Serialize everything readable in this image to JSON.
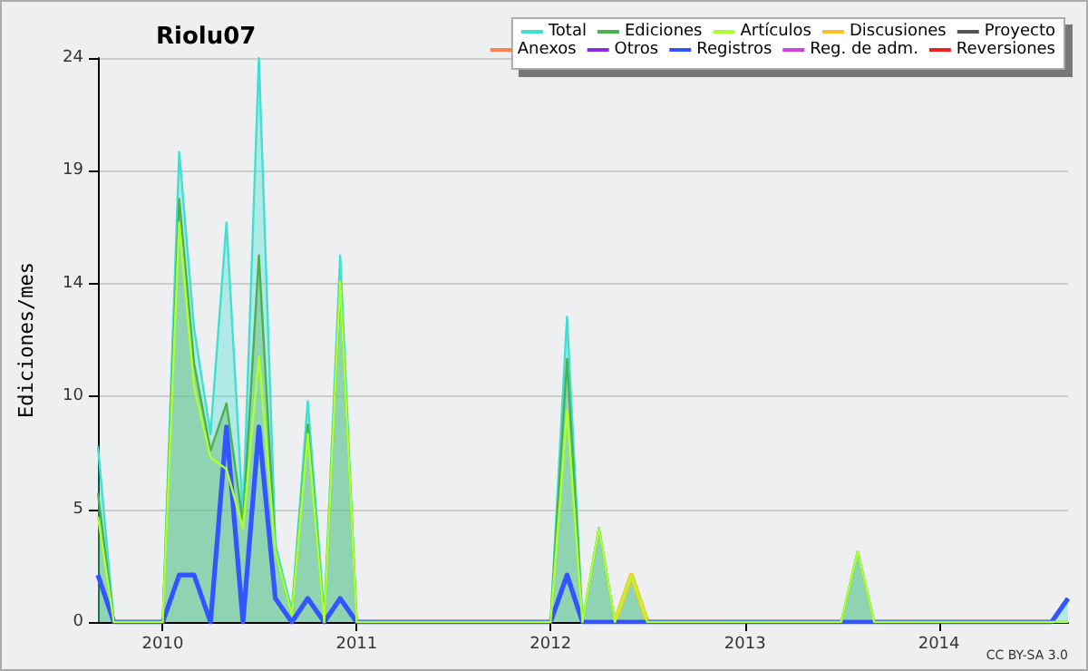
{
  "chart_data": {
    "type": "line",
    "title": "Riolu07",
    "ylabel": "Ediciones/mes",
    "annotations": [
      "CC BY-SA 3.0"
    ],
    "x": [
      "2009-09",
      "2009-10",
      "2009-11",
      "2009-12",
      "2010-01",
      "2010-02",
      "2010-03",
      "2010-04",
      "2010-05",
      "2010-06",
      "2010-07",
      "2010-08",
      "2010-09",
      "2010-10",
      "2010-11",
      "2010-12",
      "2011-01",
      "2011-02",
      "2011-03",
      "2011-04",
      "2011-05",
      "2011-06",
      "2011-07",
      "2011-08",
      "2011-09",
      "2011-10",
      "2011-11",
      "2011-12",
      "2012-01",
      "2012-02",
      "2012-03",
      "2012-04",
      "2012-05",
      "2012-06",
      "2012-07",
      "2012-08",
      "2012-09",
      "2012-10",
      "2012-11",
      "2012-12",
      "2013-01",
      "2013-02",
      "2013-03",
      "2013-04",
      "2013-05",
      "2013-06",
      "2013-07",
      "2013-08",
      "2013-09",
      "2013-10",
      "2013-11",
      "2013-12",
      "2014-01",
      "2014-02",
      "2014-03",
      "2014-04",
      "2014-05",
      "2014-06",
      "2014-07",
      "2014-08",
      "2014-09"
    ],
    "xlim": [
      "2009-09",
      "2014-09"
    ],
    "xticks": [
      {
        "value": "2010-01",
        "label": "2010"
      },
      {
        "value": "2011-01",
        "label": "2011"
      },
      {
        "value": "2012-01",
        "label": "2012"
      },
      {
        "value": "2013-01",
        "label": "2013"
      },
      {
        "value": "2014-01",
        "label": "2014"
      }
    ],
    "ylim": [
      0,
      24
    ],
    "yticks": [
      0,
      {
        "value": 4.8,
        "label": "5"
      },
      {
        "value": 9.6,
        "label": "10"
      },
      {
        "value": 14.4,
        "label": "14"
      },
      {
        "value": 19.2,
        "label": "19"
      },
      24
    ],
    "grid": "y",
    "legend": "top right",
    "marker": "none",
    "line_style": "solid",
    "series": [
      {
        "name": "Total",
        "type": "area",
        "color": "#40e0d0",
        "values": [
          7.5,
          0,
          0,
          0,
          0,
          20,
          12.5,
          8,
          17,
          4.5,
          24,
          3.3,
          0.5,
          9.4,
          0.3,
          15.6,
          0,
          0,
          0,
          0,
          0,
          0,
          0,
          0,
          0,
          0,
          0,
          0,
          0,
          13,
          0,
          4,
          0,
          2,
          0,
          0,
          0,
          0,
          0,
          0,
          0,
          0,
          0,
          0,
          0,
          0,
          0,
          3,
          0,
          0,
          0,
          0,
          0,
          0,
          0,
          0,
          0,
          0,
          0,
          0,
          1
        ]
      },
      {
        "name": "Ediciones",
        "type": "area",
        "color": "#4caf50",
        "values": [
          5.5,
          0,
          0,
          0,
          0,
          18,
          11,
          7.3,
          9.3,
          4.2,
          15.6,
          3,
          0.3,
          8.4,
          0,
          14.5,
          0,
          0,
          0,
          0,
          0,
          0,
          0,
          0,
          0,
          0,
          0,
          0,
          0,
          11.2,
          0,
          4,
          0,
          2,
          0,
          0,
          0,
          0,
          0,
          0,
          0,
          0,
          0,
          0,
          0,
          0,
          0,
          3,
          0,
          0,
          0,
          0,
          0,
          0,
          0,
          0,
          0,
          0,
          0,
          0,
          0
        ]
      },
      {
        "name": "Artículos",
        "color": "#adff2f",
        "values": [
          4.5,
          0,
          0,
          0,
          0,
          17,
          10,
          7,
          6.5,
          4,
          11.3,
          3,
          0.3,
          8,
          0,
          14.5,
          0,
          0,
          0,
          0,
          0,
          0,
          0,
          0,
          0,
          0,
          0,
          0,
          0,
          9,
          0,
          4,
          0,
          2,
          0,
          0,
          0,
          0,
          0,
          0,
          0,
          0,
          0,
          0,
          0,
          0,
          0,
          3,
          0,
          0,
          0,
          0,
          0,
          0,
          0,
          0,
          0,
          0,
          0,
          0,
          0
        ]
      },
      {
        "name": "Discusiones",
        "color": "#ffc125",
        "values": [
          null,
          null,
          null,
          null,
          null,
          null,
          null,
          null,
          null,
          null,
          null,
          null,
          null,
          null,
          null,
          null,
          null,
          null,
          null,
          null,
          null,
          null,
          null,
          null,
          null,
          null,
          null,
          null,
          null,
          null,
          null,
          null,
          0,
          2,
          0,
          null,
          null,
          null,
          null,
          null,
          null,
          null,
          null,
          null,
          null,
          null,
          null,
          null,
          null,
          null,
          null,
          null,
          null,
          null,
          null,
          null,
          null,
          null,
          null,
          null,
          null
        ]
      },
      {
        "name": "Proyecto",
        "color": "#555555",
        "values": [
          null,
          null,
          null,
          null,
          null,
          null,
          null,
          null,
          null,
          null,
          null,
          null,
          null,
          null,
          null,
          null,
          null,
          null,
          null,
          null,
          null,
          null,
          null,
          null,
          null,
          null,
          null,
          null,
          null,
          null,
          null,
          null,
          null,
          null,
          null,
          null,
          null,
          null,
          null,
          null,
          null,
          null,
          null,
          null,
          null,
          null,
          null,
          null,
          null,
          null,
          null,
          null,
          null,
          null,
          null,
          null,
          null,
          null,
          null,
          null,
          null
        ]
      },
      {
        "name": "Anexos",
        "color": "#ff7f50",
        "values": [
          null,
          null,
          null,
          null,
          null,
          null,
          null,
          null,
          null,
          null,
          null,
          null,
          null,
          null,
          null,
          null,
          null,
          null,
          null,
          null,
          null,
          null,
          null,
          null,
          null,
          null,
          null,
          null,
          null,
          null,
          null,
          null,
          null,
          null,
          null,
          null,
          null,
          null,
          null,
          null,
          null,
          null,
          null,
          null,
          null,
          null,
          null,
          null,
          null,
          null,
          null,
          null,
          null,
          null,
          null,
          null,
          null,
          null,
          null,
          null,
          null
        ]
      },
      {
        "name": "Otros",
        "color": "#8a2be2",
        "values": [
          null,
          null,
          null,
          null,
          null,
          null,
          null,
          null,
          null,
          null,
          null,
          null,
          null,
          null,
          null,
          null,
          null,
          null,
          null,
          null,
          null,
          null,
          null,
          null,
          null,
          null,
          null,
          null,
          null,
          null,
          null,
          null,
          null,
          null,
          null,
          null,
          null,
          null,
          null,
          null,
          null,
          null,
          null,
          null,
          null,
          null,
          null,
          null,
          null,
          null,
          null,
          null,
          null,
          null,
          null,
          null,
          null,
          null,
          null,
          null,
          null
        ]
      },
      {
        "name": "Registros",
        "color": "#3355ff",
        "values": [
          2,
          0,
          0,
          0,
          0,
          2,
          2,
          0,
          8.3,
          0,
          8.3,
          1,
          0,
          1,
          0,
          1,
          0,
          0,
          0,
          0,
          0,
          0,
          0,
          0,
          0,
          0,
          0,
          0,
          0,
          2,
          0,
          0,
          0,
          0,
          0,
          0,
          0,
          0,
          0,
          0,
          0,
          0,
          0,
          0,
          0,
          0,
          0,
          0,
          0,
          0,
          0,
          0,
          0,
          0,
          0,
          0,
          0,
          0,
          0,
          0,
          1
        ]
      },
      {
        "name": "Reg. de adm.",
        "color": "#cc44dd",
        "values": [
          null,
          null,
          null,
          null,
          null,
          null,
          null,
          null,
          null,
          null,
          null,
          null,
          null,
          null,
          null,
          null,
          null,
          null,
          null,
          null,
          null,
          null,
          null,
          null,
          null,
          null,
          null,
          null,
          null,
          null,
          null,
          null,
          null,
          null,
          null,
          null,
          null,
          null,
          null,
          null,
          null,
          null,
          null,
          null,
          null,
          null,
          null,
          null,
          null,
          null,
          null,
          null,
          null,
          null,
          null,
          null,
          null,
          null,
          null,
          null,
          null
        ]
      },
      {
        "name": "Reversiones",
        "color": "#ee2222",
        "values": [
          null,
          null,
          null,
          null,
          null,
          null,
          null,
          null,
          null,
          null,
          null,
          null,
          null,
          null,
          null,
          null,
          null,
          null,
          null,
          null,
          null,
          null,
          null,
          null,
          null,
          null,
          null,
          null,
          null,
          null,
          null,
          null,
          null,
          null,
          null,
          null,
          null,
          null,
          null,
          null,
          null,
          null,
          null,
          null,
          null,
          null,
          null,
          null,
          null,
          null,
          null,
          null,
          null,
          null,
          null,
          null,
          null,
          null,
          null,
          null,
          null
        ]
      }
    ]
  }
}
